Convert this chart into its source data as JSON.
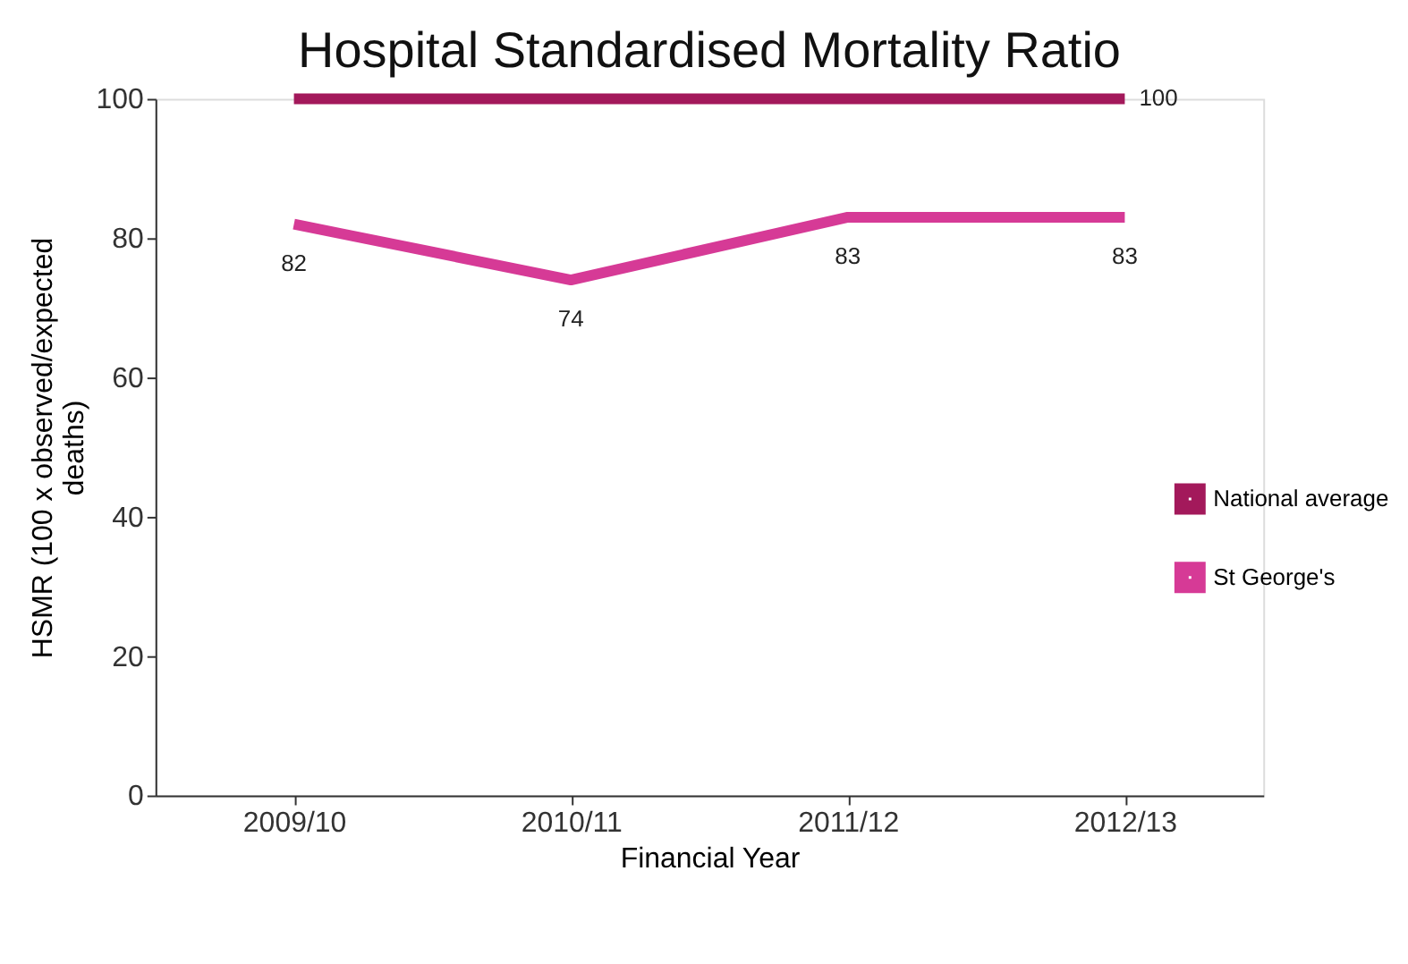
{
  "chart_data": {
    "type": "line",
    "title": "Hospital Standardised Mortality Ratio",
    "xlabel": "Financial Year",
    "ylabel": "HSMR (100 x observed/expected deaths)",
    "categories": [
      "2009/10",
      "2010/11",
      "2011/12",
      "2012/13"
    ],
    "series": [
      {
        "name": "National average",
        "color": "#a3195b",
        "values": [
          100,
          100,
          100,
          100
        ],
        "value_labels": [
          null,
          null,
          null,
          "100"
        ]
      },
      {
        "name": "St George's",
        "color": "#d63a96",
        "values": [
          82,
          74,
          83,
          83
        ],
        "value_labels": [
          "82",
          "74",
          "83",
          "83"
        ]
      }
    ],
    "ylim": [
      0,
      100
    ],
    "yticks": [
      0,
      20,
      40,
      60,
      80,
      100
    ],
    "grid": false,
    "legend": "right",
    "marker": "none",
    "line_style": "solid"
  }
}
